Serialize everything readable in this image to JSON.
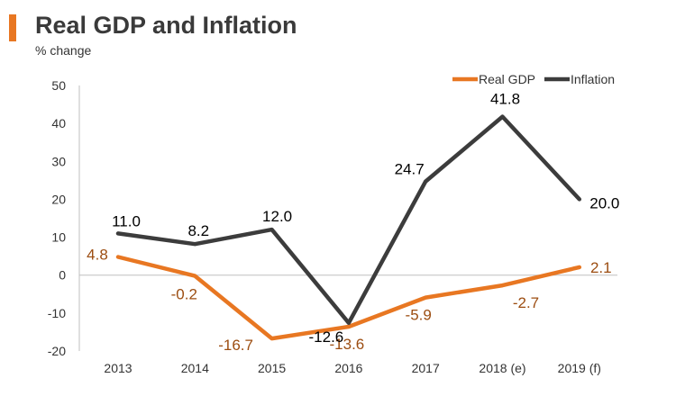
{
  "header": {
    "title": "Real GDP and Inflation",
    "subtitle": "% change"
  },
  "colors": {
    "accent": "#e87722",
    "real_gdp": "#e87722",
    "inflation": "#3c3c3c",
    "real_gdp_label": "#9c4d11",
    "inflation_label": "#000000",
    "axis_text": "#333333",
    "zero_line": "#bfbfbf"
  },
  "chart_data": {
    "type": "line",
    "title": "Real GDP and Inflation",
    "subtitle": "% change",
    "xlabel": "",
    "ylabel": "",
    "categories": [
      "2013",
      "2014",
      "2015",
      "2016",
      "2017",
      "2018 (e)",
      "2019 (f)"
    ],
    "ylim": [
      -20,
      50
    ],
    "yticks": [
      "50",
      "40",
      "30",
      "20",
      "10",
      "0",
      "-10",
      "-20"
    ],
    "grid": false,
    "legend": "top-right",
    "series": [
      {
        "name": "Real GDP",
        "values": [
          4.8,
          -0.2,
          -16.7,
          -13.6,
          -5.9,
          -2.7,
          2.1
        ],
        "labels": [
          "4.8",
          "-0.2",
          "-16.7",
          "-13.6",
          "-5.9",
          "-2.7",
          "2.1"
        ]
      },
      {
        "name": "Inflation",
        "values": [
          11.0,
          8.2,
          12.0,
          -12.6,
          24.7,
          41.8,
          20.0
        ],
        "labels": [
          "11.0",
          "8.2",
          "12.0",
          "-12.6",
          "24.7",
          "41.8",
          "20.0"
        ]
      }
    ]
  }
}
